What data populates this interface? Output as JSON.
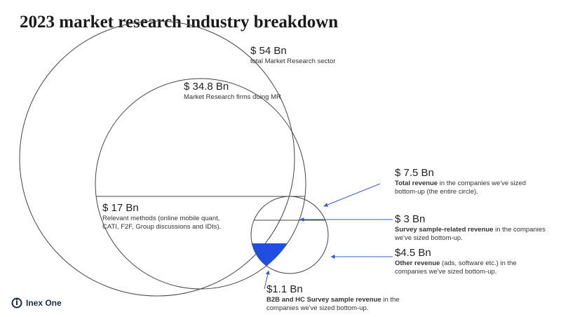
{
  "page": {
    "title": "2023 market research industry breakdown"
  },
  "brand": {
    "name": "Inex One"
  },
  "colors": {
    "accent": "#1f4fe0",
    "circle": "#444444",
    "arrow": "#3a5bc7"
  },
  "chart_data": {
    "type": "nested-circle-area",
    "title": "2023 market research industry breakdown",
    "unit": "Bn",
    "items": [
      {
        "key": "total_sector",
        "amount": "$ 54 Bn",
        "value": 54,
        "description": "total Market Research sector"
      },
      {
        "key": "mr_firms",
        "amount": "$ 34.8 Bn",
        "value": 34.8,
        "description": "Market Research firms doing MR"
      },
      {
        "key": "relevant",
        "amount": "$ 17 Bn",
        "value": 17,
        "description": "Relevant methods (online mobile quant, CATI, F2F, Group discussions and IDIs)."
      },
      {
        "key": "bottom_up_total",
        "amount": "$ 7.5 Bn",
        "value": 7.5,
        "description_bold": "Total revenue",
        "description_rest": " in the companies we've sized bottom-up (the entire circle)."
      },
      {
        "key": "survey_sample",
        "amount": "$ 3 Bn",
        "value": 3,
        "description_bold": "Survey sample-related revenue",
        "description_rest": " in the companies we've sized bottom-up."
      },
      {
        "key": "other_revenue",
        "amount": "$4.5 Bn",
        "value": 4.5,
        "description_bold": "Other revenue",
        "description_rest": " (ads, software etc.) in the companies we've sized bottom-up."
      },
      {
        "key": "b2b_hc",
        "amount": "$1.1 Bn",
        "value": 1.1,
        "description_bold": "B2B and HC Survey sample revenue",
        "description_rest": " in the companies we've sized bottom-up."
      }
    ]
  }
}
